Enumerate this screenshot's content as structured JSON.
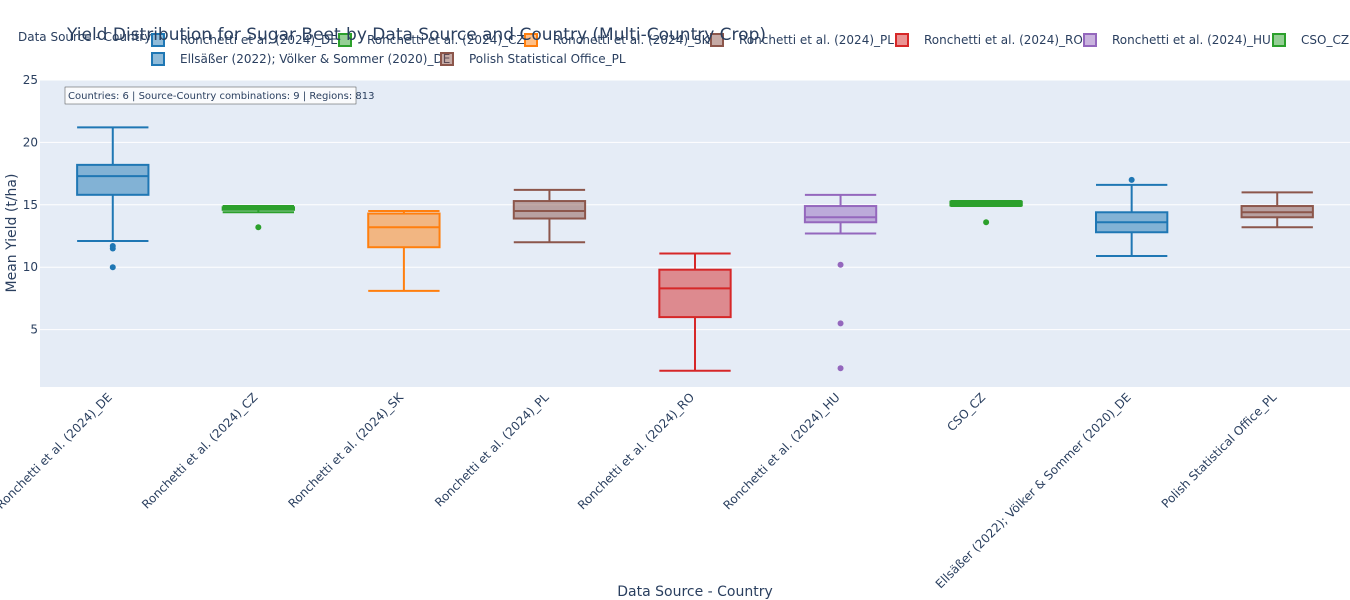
{
  "chart_data": {
    "type": "box",
    "title": "Yield Distribution for Sugar Beet by Data Source and Country (Multi-Country Crop)",
    "xlabel": "Data Source - Country",
    "ylabel": "Mean Yield (t/ha)",
    "ylim": [
      0.4,
      25
    ],
    "yticks": [
      5,
      10,
      15,
      20,
      25
    ],
    "grid": true,
    "legend_title": "Data Source - Country",
    "legend_position": "top",
    "annotation": "Countries: 6 | Source-Country combinations: 9 | Regions: 813",
    "categories": [
      "Ronchetti et al. (2024)_DE",
      "Ronchetti et al. (2024)_CZ",
      "Ronchetti et al. (2024)_SK",
      "Ronchetti et al. (2024)_PL",
      "Ronchetti et al. (2024)_RO",
      "Ronchetti et al. (2024)_HU",
      "CSO_CZ",
      "Ellsäßer (2022); Völker & Sommer (2020)_DE",
      "Polish Statistical Office_PL"
    ],
    "series": [
      {
        "name": "Ronchetti et al. (2024)_DE",
        "color": "#1f77b4",
        "min": 12.1,
        "q1": 15.8,
        "median": 17.3,
        "q3": 18.2,
        "max": 21.2,
        "outliers": [
          11.7,
          11.5,
          10.0
        ]
      },
      {
        "name": "Ronchetti et al. (2024)_CZ",
        "color": "#2ca02c",
        "min": 14.4,
        "q1": 14.6,
        "median": 14.7,
        "q3": 14.8,
        "max": 14.9,
        "outliers": [
          13.2
        ]
      },
      {
        "name": "Ronchetti et al. (2024)_SK",
        "color": "#ff7f0e",
        "min": 8.1,
        "q1": 11.6,
        "median": 13.2,
        "q3": 14.3,
        "max": 14.5,
        "outliers": []
      },
      {
        "name": "Ronchetti et al. (2024)_PL",
        "color": "#8c564b",
        "min": 12.0,
        "q1": 13.9,
        "median": 14.5,
        "q3": 15.3,
        "max": 16.2,
        "outliers": []
      },
      {
        "name": "Ronchetti et al. (2024)_RO",
        "color": "#d62728",
        "min": 1.7,
        "q1": 6.0,
        "median": 8.3,
        "q3": 9.8,
        "max": 11.1,
        "outliers": []
      },
      {
        "name": "Ronchetti et al. (2024)_HU",
        "color": "#9467bd",
        "min": 12.7,
        "q1": 13.6,
        "median": 14.0,
        "q3": 14.9,
        "max": 15.8,
        "outliers": [
          10.2,
          5.5,
          1.9
        ]
      },
      {
        "name": "CSO_CZ",
        "color": "#2ca02c",
        "min": 14.9,
        "q1": 14.95,
        "median": 15.1,
        "q3": 15.25,
        "max": 15.3,
        "outliers": [
          13.6
        ]
      },
      {
        "name": "Ellsäßer (2022); Völker & Sommer (2020)_DE",
        "color": "#1f77b4",
        "min": 10.9,
        "q1": 12.8,
        "median": 13.6,
        "q3": 14.4,
        "max": 16.6,
        "outliers": [
          17.0
        ]
      },
      {
        "name": "Polish Statistical Office_PL",
        "color": "#8c564b",
        "min": 13.2,
        "q1": 14.0,
        "median": 14.4,
        "q3": 14.9,
        "max": 16.0,
        "outliers": []
      }
    ]
  }
}
